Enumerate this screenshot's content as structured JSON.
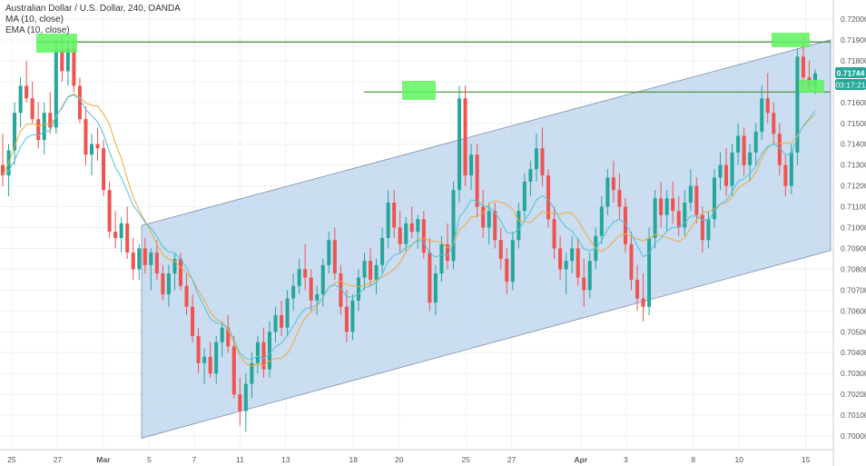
{
  "legend": {
    "title": "Australian Dollar / U.S. Dollar, 240, OANDA",
    "ma": "MA (10, close)",
    "ema": "EMA (10, close)"
  },
  "badges": {
    "last_price": "0.71744",
    "countdown": "03:17:21"
  },
  "colors": {
    "up": "#26a69a",
    "down": "#ef5350",
    "ma": "#f2a93b",
    "ema": "#4fc3d9",
    "channel_fill": "#b8d1ec",
    "level_line": "#3d8b2e",
    "highlight": "#5ef35e",
    "grid": "#eef0f3"
  },
  "chart_data": {
    "type": "candlestick",
    "title": "Australian Dollar / U.S. Dollar, 240, OANDA",
    "ylim": [
      0.6995,
      0.7205
    ],
    "y_ticks": [
      "0.72000",
      "0.71900",
      "0.71800",
      "0.71700",
      "0.71600",
      "0.71500",
      "0.71400",
      "0.71300",
      "0.71200",
      "0.71100",
      "0.71000",
      "0.70900",
      "0.70800",
      "0.70700",
      "0.70600",
      "0.70500",
      "0.70400",
      "0.70300",
      "0.70200",
      "0.70100",
      "0.70000"
    ],
    "x_ticks": [
      "25",
      "27",
      "Mar",
      "5",
      "7",
      "11",
      "13",
      "18",
      "20",
      "25",
      "27",
      "Apr",
      "3",
      "8",
      "10",
      "15"
    ],
    "indicators": [
      "MA (10, close)",
      "EMA (10, close)"
    ],
    "resistance_levels": [
      0.7189,
      0.7165
    ],
    "channel": {
      "upper": {
        "from": 0.7101,
        "to": 0.719
      },
      "lower": {
        "from": 0.6999,
        "to": 0.7089
      }
    },
    "candles": [
      {
        "o": 0.713,
        "h": 0.7145,
        "l": 0.712,
        "c": 0.7125
      },
      {
        "o": 0.7125,
        "h": 0.714,
        "l": 0.7115,
        "c": 0.7137
      },
      {
        "o": 0.7137,
        "h": 0.716,
        "l": 0.713,
        "c": 0.7155
      },
      {
        "o": 0.7155,
        "h": 0.7172,
        "l": 0.7148,
        "c": 0.7168
      },
      {
        "o": 0.7168,
        "h": 0.718,
        "l": 0.716,
        "c": 0.7162
      },
      {
        "o": 0.7162,
        "h": 0.717,
        "l": 0.715,
        "c": 0.7152
      },
      {
        "o": 0.7152,
        "h": 0.716,
        "l": 0.7138,
        "c": 0.7142
      },
      {
        "o": 0.7142,
        "h": 0.716,
        "l": 0.7135,
        "c": 0.7155
      },
      {
        "o": 0.7155,
        "h": 0.7165,
        "l": 0.7145,
        "c": 0.7148
      },
      {
        "o": 0.7148,
        "h": 0.719,
        "l": 0.7145,
        "c": 0.7185
      },
      {
        "o": 0.7185,
        "h": 0.7192,
        "l": 0.717,
        "c": 0.7175
      },
      {
        "o": 0.7175,
        "h": 0.719,
        "l": 0.7168,
        "c": 0.7186
      },
      {
        "o": 0.7186,
        "h": 0.7192,
        "l": 0.7165,
        "c": 0.7168
      },
      {
        "o": 0.7168,
        "h": 0.7172,
        "l": 0.715,
        "c": 0.7152
      },
      {
        "o": 0.7152,
        "h": 0.7158,
        "l": 0.713,
        "c": 0.7135
      },
      {
        "o": 0.7135,
        "h": 0.7145,
        "l": 0.7125,
        "c": 0.714
      },
      {
        "o": 0.714,
        "h": 0.7148,
        "l": 0.7132,
        "c": 0.7138
      },
      {
        "o": 0.7138,
        "h": 0.7142,
        "l": 0.7115,
        "c": 0.7118
      },
      {
        "o": 0.7118,
        "h": 0.7122,
        "l": 0.7095,
        "c": 0.7098
      },
      {
        "o": 0.7098,
        "h": 0.7108,
        "l": 0.709,
        "c": 0.7095
      },
      {
        "o": 0.7095,
        "h": 0.7105,
        "l": 0.7088,
        "c": 0.7102
      },
      {
        "o": 0.7102,
        "h": 0.711,
        "l": 0.7085,
        "c": 0.7088
      },
      {
        "o": 0.7088,
        "h": 0.7095,
        "l": 0.7075,
        "c": 0.708
      },
      {
        "o": 0.708,
        "h": 0.7092,
        "l": 0.7075,
        "c": 0.709
      },
      {
        "o": 0.709,
        "h": 0.7095,
        "l": 0.7078,
        "c": 0.7082
      },
      {
        "o": 0.7082,
        "h": 0.709,
        "l": 0.707,
        "c": 0.7088
      },
      {
        "o": 0.7088,
        "h": 0.7094,
        "l": 0.7075,
        "c": 0.7078
      },
      {
        "o": 0.7078,
        "h": 0.7082,
        "l": 0.7065,
        "c": 0.7068
      },
      {
        "o": 0.7068,
        "h": 0.7082,
        "l": 0.7062,
        "c": 0.7078
      },
      {
        "o": 0.7078,
        "h": 0.7088,
        "l": 0.707,
        "c": 0.7085
      },
      {
        "o": 0.7085,
        "h": 0.7088,
        "l": 0.707,
        "c": 0.7072
      },
      {
        "o": 0.7072,
        "h": 0.7078,
        "l": 0.7058,
        "c": 0.7062
      },
      {
        "o": 0.7062,
        "h": 0.7068,
        "l": 0.7045,
        "c": 0.7048
      },
      {
        "o": 0.7048,
        "h": 0.7052,
        "l": 0.703,
        "c": 0.7035
      },
      {
        "o": 0.7035,
        "h": 0.7042,
        "l": 0.7025,
        "c": 0.7038
      },
      {
        "o": 0.7038,
        "h": 0.7045,
        "l": 0.7028,
        "c": 0.703
      },
      {
        "o": 0.703,
        "h": 0.7048,
        "l": 0.7025,
        "c": 0.7045
      },
      {
        "o": 0.7045,
        "h": 0.7055,
        "l": 0.7038,
        "c": 0.7052
      },
      {
        "o": 0.7052,
        "h": 0.7058,
        "l": 0.704,
        "c": 0.7043
      },
      {
        "o": 0.7043,
        "h": 0.7048,
        "l": 0.7018,
        "c": 0.702
      },
      {
        "o": 0.702,
        "h": 0.7028,
        "l": 0.7005,
        "c": 0.7012
      },
      {
        "o": 0.7012,
        "h": 0.703,
        "l": 0.7002,
        "c": 0.7025
      },
      {
        "o": 0.7025,
        "h": 0.704,
        "l": 0.7018,
        "c": 0.7035
      },
      {
        "o": 0.7035,
        "h": 0.7048,
        "l": 0.703,
        "c": 0.7045
      },
      {
        "o": 0.7045,
        "h": 0.7052,
        "l": 0.7028,
        "c": 0.7032
      },
      {
        "o": 0.7032,
        "h": 0.7055,
        "l": 0.7028,
        "c": 0.705
      },
      {
        "o": 0.705,
        "h": 0.7062,
        "l": 0.7045,
        "c": 0.7058
      },
      {
        "o": 0.7058,
        "h": 0.7065,
        "l": 0.7048,
        "c": 0.7052
      },
      {
        "o": 0.7052,
        "h": 0.707,
        "l": 0.7048,
        "c": 0.7066
      },
      {
        "o": 0.7066,
        "h": 0.7078,
        "l": 0.706,
        "c": 0.7072
      },
      {
        "o": 0.7072,
        "h": 0.7085,
        "l": 0.7068,
        "c": 0.708
      },
      {
        "o": 0.708,
        "h": 0.7092,
        "l": 0.707,
        "c": 0.7076
      },
      {
        "o": 0.7076,
        "h": 0.708,
        "l": 0.706,
        "c": 0.7065
      },
      {
        "o": 0.7065,
        "h": 0.7072,
        "l": 0.7058,
        "c": 0.7068
      },
      {
        "o": 0.7068,
        "h": 0.7085,
        "l": 0.7062,
        "c": 0.7082
      },
      {
        "o": 0.7082,
        "h": 0.7098,
        "l": 0.7078,
        "c": 0.7094
      },
      {
        "o": 0.7094,
        "h": 0.71,
        "l": 0.7075,
        "c": 0.7078
      },
      {
        "o": 0.7078,
        "h": 0.7082,
        "l": 0.7058,
        "c": 0.7062
      },
      {
        "o": 0.7062,
        "h": 0.707,
        "l": 0.7045,
        "c": 0.705
      },
      {
        "o": 0.705,
        "h": 0.7068,
        "l": 0.7046,
        "c": 0.7065
      },
      {
        "o": 0.7065,
        "h": 0.708,
        "l": 0.706,
        "c": 0.7076
      },
      {
        "o": 0.7076,
        "h": 0.7088,
        "l": 0.707,
        "c": 0.7084
      },
      {
        "o": 0.7084,
        "h": 0.709,
        "l": 0.7072,
        "c": 0.7075
      },
      {
        "o": 0.7075,
        "h": 0.7085,
        "l": 0.7068,
        "c": 0.7082
      },
      {
        "o": 0.7082,
        "h": 0.71,
        "l": 0.7078,
        "c": 0.7095
      },
      {
        "o": 0.7095,
        "h": 0.7118,
        "l": 0.709,
        "c": 0.7112
      },
      {
        "o": 0.7112,
        "h": 0.7118,
        "l": 0.7095,
        "c": 0.71
      },
      {
        "o": 0.71,
        "h": 0.7108,
        "l": 0.7088,
        "c": 0.7092
      },
      {
        "o": 0.7092,
        "h": 0.7105,
        "l": 0.7088,
        "c": 0.7102
      },
      {
        "o": 0.7102,
        "h": 0.711,
        "l": 0.7095,
        "c": 0.7098
      },
      {
        "o": 0.7098,
        "h": 0.7106,
        "l": 0.709,
        "c": 0.7104
      },
      {
        "o": 0.7104,
        "h": 0.7108,
        "l": 0.7085,
        "c": 0.7088
      },
      {
        "o": 0.7088,
        "h": 0.7095,
        "l": 0.706,
        "c": 0.7064
      },
      {
        "o": 0.7064,
        "h": 0.7082,
        "l": 0.7058,
        "c": 0.7078
      },
      {
        "o": 0.7078,
        "h": 0.7096,
        "l": 0.7074,
        "c": 0.7092
      },
      {
        "o": 0.7092,
        "h": 0.7102,
        "l": 0.708,
        "c": 0.7084
      },
      {
        "o": 0.7084,
        "h": 0.7122,
        "l": 0.708,
        "c": 0.7118
      },
      {
        "o": 0.7118,
        "h": 0.7168,
        "l": 0.7112,
        "c": 0.7162
      },
      {
        "o": 0.7162,
        "h": 0.7168,
        "l": 0.712,
        "c": 0.7125
      },
      {
        "o": 0.7125,
        "h": 0.714,
        "l": 0.7118,
        "c": 0.7135
      },
      {
        "o": 0.7135,
        "h": 0.714,
        "l": 0.7105,
        "c": 0.711
      },
      {
        "o": 0.711,
        "h": 0.7118,
        "l": 0.7095,
        "c": 0.71
      },
      {
        "o": 0.71,
        "h": 0.7112,
        "l": 0.7092,
        "c": 0.7108
      },
      {
        "o": 0.7108,
        "h": 0.7112,
        "l": 0.709,
        "c": 0.7094
      },
      {
        "o": 0.7094,
        "h": 0.71,
        "l": 0.708,
        "c": 0.7085
      },
      {
        "o": 0.7085,
        "h": 0.709,
        "l": 0.7068,
        "c": 0.7074
      },
      {
        "o": 0.7074,
        "h": 0.7098,
        "l": 0.707,
        "c": 0.7094
      },
      {
        "o": 0.7094,
        "h": 0.7112,
        "l": 0.709,
        "c": 0.7108
      },
      {
        "o": 0.7108,
        "h": 0.7126,
        "l": 0.7104,
        "c": 0.7122
      },
      {
        "o": 0.7122,
        "h": 0.7132,
        "l": 0.7115,
        "c": 0.7128
      },
      {
        "o": 0.7128,
        "h": 0.7145,
        "l": 0.7122,
        "c": 0.7138
      },
      {
        "o": 0.7138,
        "h": 0.7148,
        "l": 0.712,
        "c": 0.7125
      },
      {
        "o": 0.7125,
        "h": 0.7128,
        "l": 0.71,
        "c": 0.7104
      },
      {
        "o": 0.7104,
        "h": 0.711,
        "l": 0.7085,
        "c": 0.709
      },
      {
        "o": 0.709,
        "h": 0.7096,
        "l": 0.7075,
        "c": 0.708
      },
      {
        "o": 0.708,
        "h": 0.7088,
        "l": 0.7068,
        "c": 0.7084
      },
      {
        "o": 0.7084,
        "h": 0.7096,
        "l": 0.7078,
        "c": 0.709
      },
      {
        "o": 0.709,
        "h": 0.7095,
        "l": 0.7072,
        "c": 0.7076
      },
      {
        "o": 0.7076,
        "h": 0.7085,
        "l": 0.7062,
        "c": 0.707
      },
      {
        "o": 0.707,
        "h": 0.7088,
        "l": 0.7066,
        "c": 0.7084
      },
      {
        "o": 0.7084,
        "h": 0.71,
        "l": 0.708,
        "c": 0.7096
      },
      {
        "o": 0.7096,
        "h": 0.7115,
        "l": 0.7092,
        "c": 0.711
      },
      {
        "o": 0.711,
        "h": 0.7128,
        "l": 0.7106,
        "c": 0.7124
      },
      {
        "o": 0.7124,
        "h": 0.7132,
        "l": 0.7112,
        "c": 0.7118
      },
      {
        "o": 0.7118,
        "h": 0.7126,
        "l": 0.7104,
        "c": 0.711
      },
      {
        "o": 0.711,
        "h": 0.7114,
        "l": 0.7088,
        "c": 0.7092
      },
      {
        "o": 0.7092,
        "h": 0.7098,
        "l": 0.707,
        "c": 0.7075
      },
      {
        "o": 0.7075,
        "h": 0.7082,
        "l": 0.706,
        "c": 0.7066
      },
      {
        "o": 0.7066,
        "h": 0.7078,
        "l": 0.7055,
        "c": 0.7062
      },
      {
        "o": 0.7062,
        "h": 0.71,
        "l": 0.7058,
        "c": 0.7095
      },
      {
        "o": 0.7095,
        "h": 0.7118,
        "l": 0.709,
        "c": 0.7114
      },
      {
        "o": 0.7114,
        "h": 0.7122,
        "l": 0.71,
        "c": 0.7106
      },
      {
        "o": 0.7106,
        "h": 0.7118,
        "l": 0.7098,
        "c": 0.7114
      },
      {
        "o": 0.7114,
        "h": 0.7122,
        "l": 0.7102,
        "c": 0.7108
      },
      {
        "o": 0.7108,
        "h": 0.7115,
        "l": 0.7096,
        "c": 0.71
      },
      {
        "o": 0.71,
        "h": 0.7118,
        "l": 0.7096,
        "c": 0.7112
      },
      {
        "o": 0.7112,
        "h": 0.7128,
        "l": 0.7108,
        "c": 0.712
      },
      {
        "o": 0.712,
        "h": 0.7124,
        "l": 0.7102,
        "c": 0.7106
      },
      {
        "o": 0.7106,
        "h": 0.711,
        "l": 0.7088,
        "c": 0.7094
      },
      {
        "o": 0.7094,
        "h": 0.7108,
        "l": 0.709,
        "c": 0.7104
      },
      {
        "o": 0.7104,
        "h": 0.7128,
        "l": 0.71,
        "c": 0.7124
      },
      {
        "o": 0.7124,
        "h": 0.7136,
        "l": 0.7118,
        "c": 0.713
      },
      {
        "o": 0.713,
        "h": 0.7138,
        "l": 0.7115,
        "c": 0.712
      },
      {
        "o": 0.712,
        "h": 0.714,
        "l": 0.7115,
        "c": 0.7136
      },
      {
        "o": 0.7136,
        "h": 0.715,
        "l": 0.713,
        "c": 0.7144
      },
      {
        "o": 0.7144,
        "h": 0.7148,
        "l": 0.7125,
        "c": 0.713
      },
      {
        "o": 0.713,
        "h": 0.714,
        "l": 0.7122,
        "c": 0.7136
      },
      {
        "o": 0.7136,
        "h": 0.715,
        "l": 0.713,
        "c": 0.7146
      },
      {
        "o": 0.7146,
        "h": 0.7168,
        "l": 0.7142,
        "c": 0.7162
      },
      {
        "o": 0.7162,
        "h": 0.7174,
        "l": 0.715,
        "c": 0.7155
      },
      {
        "o": 0.7155,
        "h": 0.716,
        "l": 0.714,
        "c": 0.7145
      },
      {
        "o": 0.7145,
        "h": 0.715,
        "l": 0.7125,
        "c": 0.713
      },
      {
        "o": 0.713,
        "h": 0.7135,
        "l": 0.7115,
        "c": 0.712
      },
      {
        "o": 0.712,
        "h": 0.714,
        "l": 0.7116,
        "c": 0.7136
      },
      {
        "o": 0.7136,
        "h": 0.7186,
        "l": 0.713,
        "c": 0.7182
      },
      {
        "o": 0.7182,
        "h": 0.7192,
        "l": 0.7168,
        "c": 0.7172
      },
      {
        "o": 0.7172,
        "h": 0.718,
        "l": 0.7166,
        "c": 0.7168
      },
      {
        "o": 0.7168,
        "h": 0.7176,
        "l": 0.7164,
        "c": 0.7174
      }
    ]
  }
}
